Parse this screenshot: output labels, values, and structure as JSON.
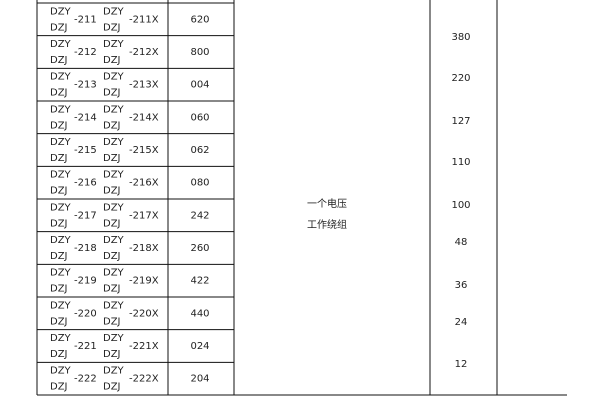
{
  "table": {
    "rows": [
      {
        "a_top": "DZY",
        "a_bottom": "DZJ",
        "a_suffix": "-211",
        "b_top": "DZY",
        "b_bottom": "DZJ",
        "b_suffix": "-211X",
        "code": "620"
      },
      {
        "a_top": "DZY",
        "a_bottom": "DZJ",
        "a_suffix": "-212",
        "b_top": "DZY",
        "b_bottom": "DZJ",
        "b_suffix": "-212X",
        "code": "800"
      },
      {
        "a_top": "DZY",
        "a_bottom": "DZJ",
        "a_suffix": "-213",
        "b_top": "DZY",
        "b_bottom": "DZJ",
        "b_suffix": "-213X",
        "code": "004"
      },
      {
        "a_top": "DZY",
        "a_bottom": "DZJ",
        "a_suffix": "-214",
        "b_top": "DZY",
        "b_bottom": "DZJ",
        "b_suffix": "-214X",
        "code": "060"
      },
      {
        "a_top": "DZY",
        "a_bottom": "DZJ",
        "a_suffix": "-215",
        "b_top": "DZY",
        "b_bottom": "DZJ",
        "b_suffix": "-215X",
        "code": "062"
      },
      {
        "a_top": "DZY",
        "a_bottom": "DZJ",
        "a_suffix": "-216",
        "b_top": "DZY",
        "b_bottom": "DZJ",
        "b_suffix": "-216X",
        "code": "080"
      },
      {
        "a_top": "DZY",
        "a_bottom": "DZJ",
        "a_suffix": "-217",
        "b_top": "DZY",
        "b_bottom": "DZJ",
        "b_suffix": "-217X",
        "code": "242"
      },
      {
        "a_top": "DZY",
        "a_bottom": "DZJ",
        "a_suffix": "-218",
        "b_top": "DZY",
        "b_bottom": "DZJ",
        "b_suffix": "-218X",
        "code": "260"
      },
      {
        "a_top": "DZY",
        "a_bottom": "DZJ",
        "a_suffix": "-219",
        "b_top": "DZY",
        "b_bottom": "DZJ",
        "b_suffix": "-219X",
        "code": "422"
      },
      {
        "a_top": "DZY",
        "a_bottom": "DZJ",
        "a_suffix": "-220",
        "b_top": "DZY",
        "b_bottom": "DZJ",
        "b_suffix": "-220X",
        "code": "440"
      },
      {
        "a_top": "DZY",
        "a_bottom": "DZJ",
        "a_suffix": "-221",
        "b_top": "DZY",
        "b_bottom": "DZJ",
        "b_suffix": "-221X",
        "code": "024"
      },
      {
        "a_top": "DZY",
        "a_bottom": "DZJ",
        "a_suffix": "-222",
        "b_top": "DZY",
        "b_bottom": "DZJ",
        "b_suffix": "-222X",
        "code": "204"
      }
    ],
    "winding": [
      "一个电压",
      "工作绕组"
    ],
    "voltages": [
      "380",
      "220",
      "127",
      "110",
      "100",
      "48",
      "36",
      "24",
      "12"
    ]
  }
}
